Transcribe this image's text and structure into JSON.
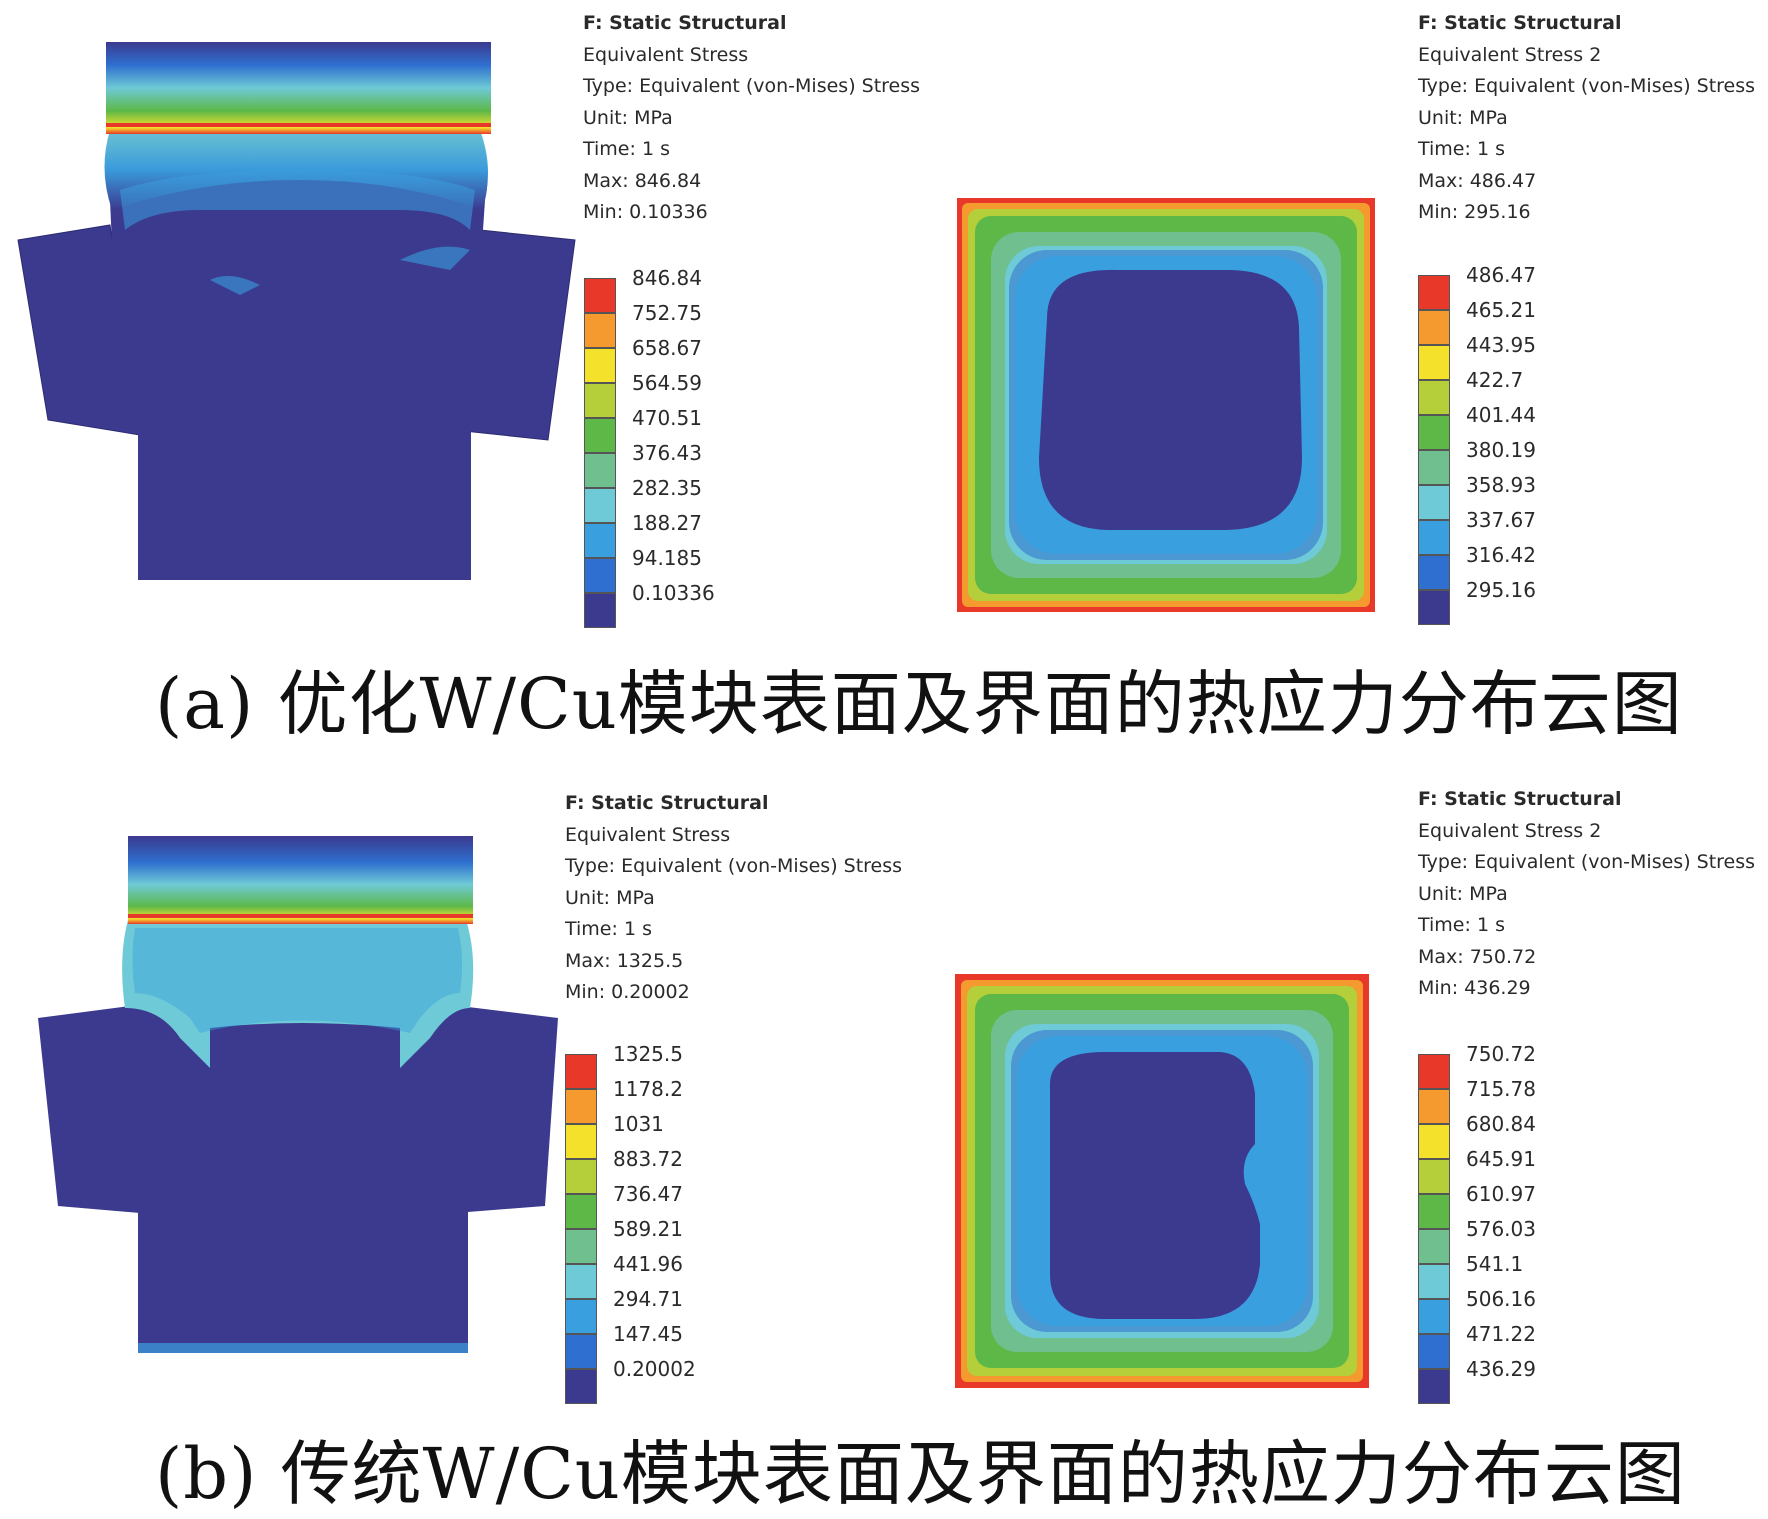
{
  "figures": [
    {
      "id": "a",
      "caption": "(a)  优化W/Cu模块表面及界面的热应力分布云图",
      "left_info": {
        "title": "F: Static Structural",
        "name": "Equivalent Stress",
        "type": "Type: Equivalent (von-Mises) Stress",
        "unit": "Unit: MPa",
        "time": "Time: 1 s",
        "max": "Max: 846.84",
        "min": "Min: 0.10336"
      },
      "left_legend": [
        "846.84",
        "752.75",
        "658.67",
        "564.59",
        "470.51",
        "376.43",
        "282.35",
        "188.27",
        "94.185",
        "0.10336"
      ],
      "right_info": {
        "title": "F: Static Structural",
        "name": "Equivalent Stress 2",
        "type": "Type: Equivalent (von-Mises) Stress",
        "unit": "Unit: MPa",
        "time": "Time: 1 s",
        "max": "Max: 486.47",
        "min": "Min: 295.16"
      },
      "right_legend": [
        "486.47",
        "465.21",
        "443.95",
        "422.7",
        "401.44",
        "380.19",
        "358.93",
        "337.67",
        "316.42",
        "295.16"
      ]
    },
    {
      "id": "b",
      "caption": "(b)  传统W/Cu模块表面及界面的热应力分布云图",
      "left_info": {
        "title": "F: Static Structural",
        "name": "Equivalent Stress",
        "type": "Type: Equivalent (von-Mises) Stress",
        "unit": "Unit: MPa",
        "time": "Time: 1 s",
        "max": "Max: 1325.5",
        "min": "Min: 0.20002"
      },
      "left_legend": [
        "1325.5",
        "1178.2",
        "1031",
        "883.72",
        "736.47",
        "589.21",
        "441.96",
        "294.71",
        "147.45",
        "0.20002"
      ],
      "right_info": {
        "title": "F: Static Structural",
        "name": "Equivalent Stress 2",
        "type": "Type: Equivalent (von-Mises) Stress",
        "unit": "Unit: MPa",
        "time": "Time: 1 s",
        "max": "Max: 750.72",
        "min": "Min: 436.29"
      },
      "right_legend": [
        "750.72",
        "715.78",
        "680.84",
        "645.91",
        "610.97",
        "576.03",
        "541.1",
        "506.16",
        "471.22",
        "436.29"
      ]
    }
  ],
  "legend_colors": [
    "#e8382a",
    "#f59a2e",
    "#f4e12b",
    "#b5cf3a",
    "#5db848",
    "#6fbf8f",
    "#6ecad6",
    "#3a9fde",
    "#2f6fcf",
    "#3b3a8f"
  ]
}
